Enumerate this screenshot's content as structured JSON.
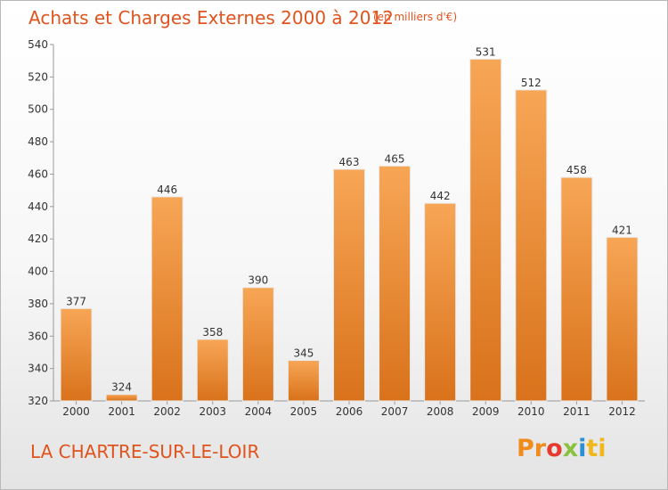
{
  "header": {
    "title": "Achats et Charges Externes 2000 à 2012",
    "subtitle": "(en milliers d'€)"
  },
  "footer": {
    "town": "LA CHARTRE-SUR-LE-LOIR",
    "logo": "Proxiti"
  },
  "colors": {
    "title": "#e0531d",
    "bar_light": "#f7a656",
    "bar_dark": "#e07b22"
  },
  "chart_data": {
    "type": "bar",
    "title": "Achats et Charges Externes 2000 à 2012",
    "categories": [
      "2000",
      "2001",
      "2002",
      "2003",
      "2004",
      "2005",
      "2006",
      "2007",
      "2008",
      "2009",
      "2010",
      "2011",
      "2012"
    ],
    "values": [
      377,
      324,
      446,
      358,
      390,
      345,
      463,
      465,
      442,
      531,
      512,
      458,
      421
    ],
    "ylim": [
      320,
      540
    ],
    "yticks": [
      320,
      340,
      360,
      380,
      400,
      420,
      440,
      460,
      480,
      500,
      520,
      540
    ],
    "xlabel": "",
    "ylabel": "",
    "grid": false,
    "legend": "none"
  }
}
